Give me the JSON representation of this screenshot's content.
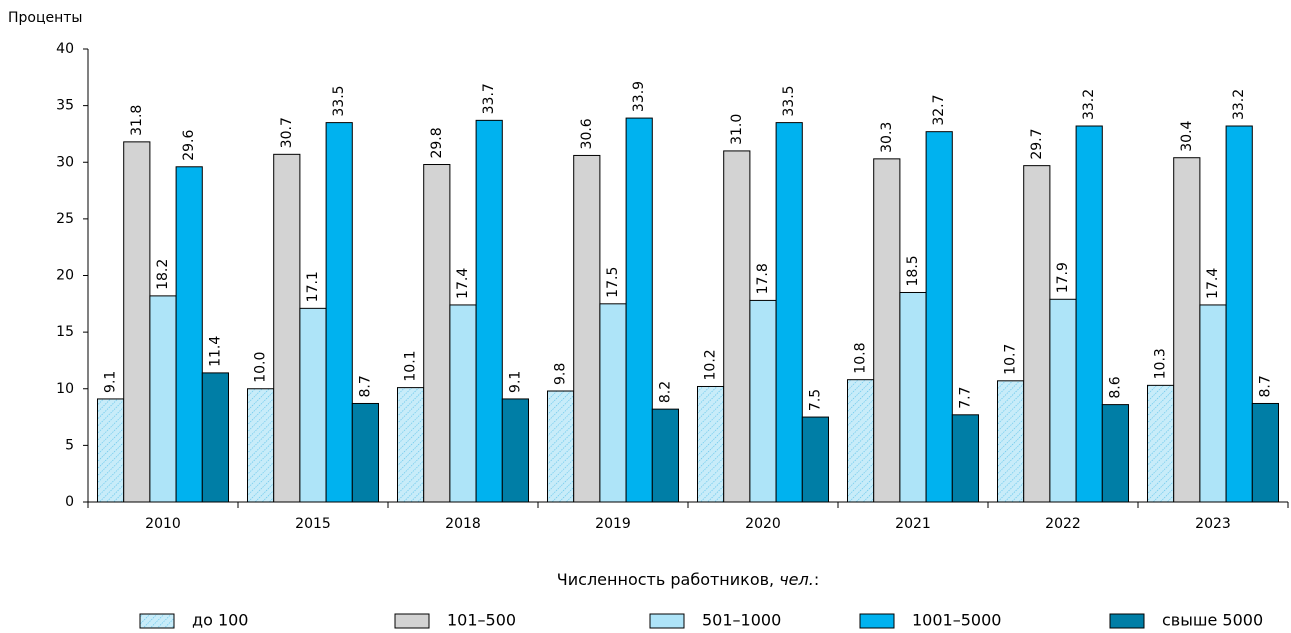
{
  "chart_data": {
    "type": "bar",
    "ylabel": "Проценты",
    "legend_title": {
      "text": "Численность работников, ",
      "italic": "чел.",
      "end": ":"
    },
    "categories": [
      "2010",
      "2015",
      "2018",
      "2019",
      "2020",
      "2021",
      "2022",
      "2023"
    ],
    "ylim": [
      0,
      40
    ],
    "yticks": [
      0,
      5,
      10,
      15,
      20,
      25,
      30,
      35,
      40
    ],
    "legend": "bottom",
    "series": [
      {
        "name": "до 100",
        "color": "#c8ecf9",
        "hatch": true,
        "values": [
          9.1,
          10.0,
          10.1,
          9.8,
          10.2,
          10.8,
          10.7,
          10.3
        ],
        "value_labels": [
          "9.1",
          "10.0",
          "10.1",
          "9.8",
          "10.2",
          "10.8",
          "10.7",
          "10.3"
        ]
      },
      {
        "name": "101–500",
        "color": "#d3d3d3",
        "values": [
          31.8,
          30.7,
          29.8,
          30.6,
          31.0,
          30.3,
          29.7,
          30.4
        ],
        "value_labels": [
          "31.8",
          "30.7",
          "29.8",
          "30.6",
          "31.0",
          "30.3",
          "29.7",
          "30.4"
        ]
      },
      {
        "name": "501–1000",
        "color": "#aee4f8",
        "values": [
          18.2,
          17.1,
          17.4,
          17.5,
          17.8,
          18.5,
          17.9,
          17.4
        ],
        "value_labels": [
          "18.2",
          "17.1",
          "17.4",
          "17.5",
          "17.8",
          "18.5",
          "17.9",
          "17.4"
        ]
      },
      {
        "name": "1001–5000",
        "color": "#00b2ef",
        "values": [
          29.6,
          33.5,
          33.7,
          33.9,
          33.5,
          32.7,
          33.2,
          33.2
        ],
        "value_labels": [
          "29.6",
          "33.5",
          "33.7",
          "33.9",
          "33.5",
          "32.7",
          "33.2",
          "33.2"
        ]
      },
      {
        "name": "свыше 5000",
        "color": "#007ea6",
        "values": [
          11.4,
          8.7,
          9.1,
          8.2,
          7.5,
          7.7,
          8.6,
          8.7
        ],
        "value_labels": [
          "11.4",
          "8.7",
          "9.1",
          "8.2",
          "7.5",
          "7.7",
          "8.6",
          "8.7"
        ]
      }
    ]
  }
}
